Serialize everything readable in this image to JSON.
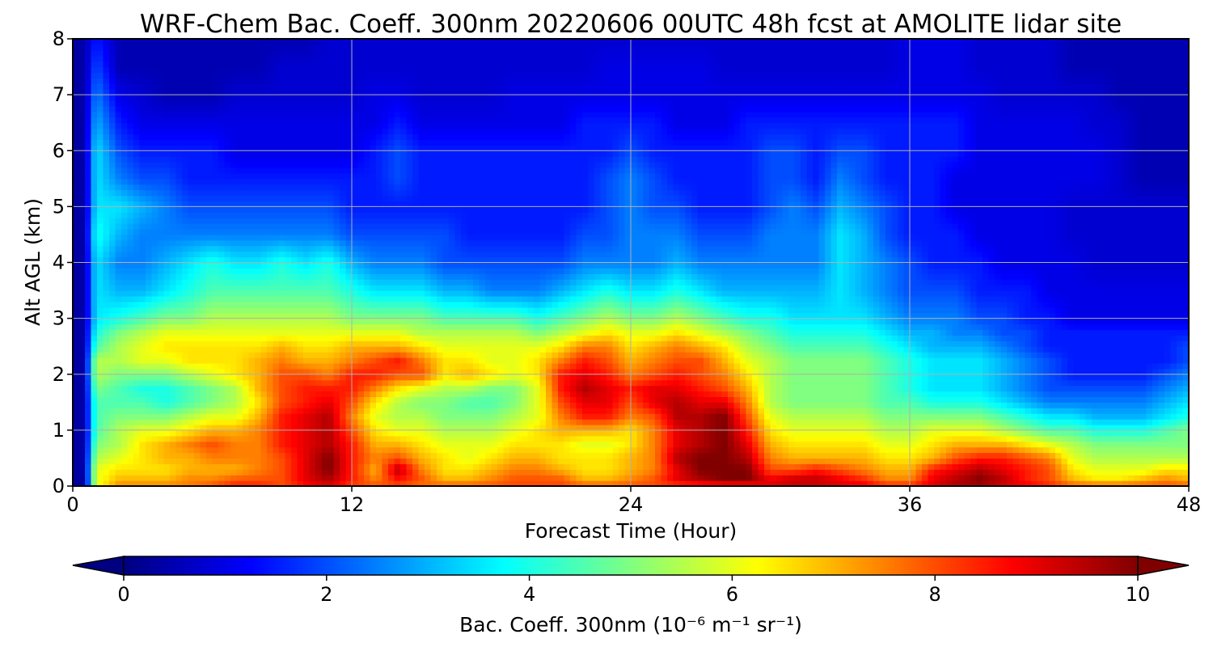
{
  "chart_data": {
    "type": "heatmap",
    "title": "WRF-Chem Bac. Coeff. 300nm  20220606 00UTC 48h fcst at AMOLITE lidar site",
    "xlabel": "Forecast Time (Hour)",
    "ylabel": "Alt AGL (km)",
    "xlim": [
      0,
      48
    ],
    "ylim": [
      0,
      8
    ],
    "xticks": [
      "0",
      "12",
      "24",
      "36",
      "48"
    ],
    "yticks": [
      "0",
      "1",
      "2",
      "3",
      "4",
      "5",
      "6",
      "7",
      "8"
    ],
    "grid": true,
    "colormap": "jet",
    "colorbar": {
      "label": "Bac. Coeff. 300nm  (10⁻⁶ m⁻¹ sr⁻¹)",
      "range": [
        0,
        10
      ],
      "ticks": [
        "0",
        "2",
        "4",
        "6",
        "8",
        "10"
      ],
      "extend": "both",
      "orientation": "horizontal"
    },
    "x": [
      0,
      0.5,
      1,
      2,
      3,
      4,
      5,
      6,
      7,
      8,
      9,
      10,
      11,
      12,
      13,
      14,
      15,
      16,
      17,
      18,
      19,
      20,
      21,
      22,
      23,
      24,
      25,
      26,
      27,
      28,
      29,
      30,
      31,
      32,
      33,
      34,
      35,
      36,
      37,
      38,
      39,
      40,
      41,
      42,
      43,
      44,
      45,
      46,
      47,
      48
    ],
    "y": [
      0,
      0.1,
      0.3,
      0.5,
      0.75,
      1.0,
      1.25,
      1.5,
      1.75,
      2.0,
      2.25,
      2.5,
      2.75,
      3.0,
      3.5,
      4.0,
      4.5,
      5.0,
      5.5,
      6.0,
      6.5,
      7.0,
      7.5,
      8.0
    ],
    "values": [
      [
        0.3,
        0.3,
        6.0,
        7.5,
        7.5,
        7.5,
        7.5,
        8.0,
        8.5,
        8.5,
        8.0,
        8.5,
        9.0,
        8.0,
        8.0,
        8.0,
        7.5,
        8.0,
        8.0,
        8.0,
        8.0,
        8.0,
        8.0,
        8.0,
        8.0,
        8.0,
        8.0,
        8.0,
        8.0,
        8.0,
        8.0,
        9.0,
        9.0,
        9.0,
        9.0,
        9.0,
        8.5,
        8.5,
        9.0,
        9.5,
        9.5,
        9.0,
        9.0,
        8.5,
        8.0,
        8.0,
        8.0,
        8.0,
        8.0,
        8.0
      ],
      [
        0.3,
        0.3,
        6.0,
        7.0,
        7.0,
        7.0,
        7.5,
        7.5,
        8.0,
        8.0,
        8.0,
        9.0,
        9.5,
        8.5,
        7.5,
        8.5,
        8.0,
        7.0,
        7.0,
        7.5,
        8.0,
        8.0,
        8.0,
        7.0,
        7.0,
        7.5,
        8.0,
        9.0,
        9.5,
        10.0,
        10.0,
        9.0,
        9.5,
        9.5,
        9.0,
        8.5,
        7.5,
        7.5,
        9.0,
        9.5,
        10.0,
        9.5,
        8.5,
        8.0,
        7.0,
        6.5,
        6.5,
        7.0,
        7.5,
        7.0
      ],
      [
        0.3,
        0.4,
        6.0,
        6.5,
        6.5,
        6.5,
        7.0,
        7.0,
        7.0,
        7.5,
        8.0,
        9.0,
        10.0,
        8.5,
        7.0,
        9.5,
        7.5,
        6.5,
        6.5,
        7.0,
        7.5,
        7.5,
        7.0,
        6.5,
        6.5,
        7.0,
        7.5,
        9.0,
        10.0,
        10.0,
        10.0,
        8.0,
        8.0,
        8.5,
        8.0,
        7.5,
        7.0,
        7.0,
        8.5,
        9.0,
        9.5,
        9.0,
        8.5,
        8.0,
        6.5,
        6.0,
        6.0,
        6.0,
        6.5,
        6.5
      ],
      [
        0.3,
        0.4,
        5.5,
        6.0,
        6.5,
        7.0,
        7.0,
        7.5,
        7.5,
        7.5,
        8.0,
        9.0,
        10.0,
        8.5,
        7.5,
        8.0,
        7.0,
        6.5,
        6.0,
        6.5,
        7.0,
        7.0,
        6.5,
        6.5,
        6.5,
        7.0,
        7.5,
        9.5,
        10.0,
        10.0,
        9.5,
        7.5,
        7.0,
        7.0,
        7.0,
        7.0,
        6.5,
        6.5,
        7.0,
        8.0,
        8.5,
        8.5,
        8.0,
        7.5,
        6.0,
        5.5,
        5.5,
        5.5,
        5.5,
        5.5
      ],
      [
        0.3,
        0.4,
        5.0,
        5.5,
        6.5,
        7.0,
        7.5,
        8.0,
        7.5,
        7.5,
        8.5,
        9.0,
        9.5,
        8.5,
        7.0,
        7.0,
        6.5,
        6.0,
        6.0,
        6.0,
        6.5,
        6.5,
        6.5,
        6.0,
        6.0,
        6.5,
        7.5,
        9.0,
        9.5,
        10.0,
        9.0,
        7.0,
        6.5,
        6.5,
        6.5,
        6.5,
        6.0,
        6.0,
        6.5,
        7.0,
        7.0,
        7.0,
        6.5,
        6.0,
        5.5,
        5.0,
        5.0,
        5.0,
        5.0,
        5.0
      ],
      [
        0.3,
        0.4,
        4.5,
        5.5,
        6.0,
        6.0,
        6.5,
        7.0,
        7.0,
        7.5,
        8.5,
        9.0,
        9.5,
        8.0,
        6.5,
        6.0,
        6.0,
        5.5,
        5.5,
        5.5,
        6.0,
        6.5,
        7.0,
        7.0,
        7.0,
        6.5,
        7.5,
        9.0,
        9.5,
        10.0,
        8.5,
        6.5,
        6.0,
        6.0,
        6.0,
        6.0,
        5.5,
        5.5,
        6.0,
        6.0,
        6.0,
        5.5,
        5.0,
        4.5,
        4.5,
        4.0,
        4.0,
        4.0,
        4.5,
        5.0
      ],
      [
        0.3,
        0.4,
        4.5,
        5.0,
        5.0,
        5.0,
        5.5,
        6.0,
        6.0,
        7.0,
        8.5,
        9.0,
        9.5,
        7.5,
        6.0,
        5.5,
        5.5,
        5.0,
        5.0,
        5.0,
        5.5,
        6.0,
        7.5,
        8.5,
        8.5,
        7.5,
        8.0,
        9.5,
        9.5,
        10.0,
        8.0,
        6.0,
        5.5,
        5.5,
        5.5,
        5.5,
        5.0,
        5.0,
        5.0,
        5.0,
        5.0,
        4.5,
        4.0,
        3.5,
        3.5,
        3.0,
        3.0,
        3.0,
        3.5,
        4.0
      ],
      [
        0.3,
        0.4,
        4.5,
        4.5,
        4.5,
        4.0,
        4.5,
        5.0,
        5.5,
        6.5,
        8.0,
        8.5,
        9.0,
        8.0,
        6.5,
        5.5,
        5.0,
        5.0,
        4.5,
        4.5,
        5.0,
        6.0,
        8.0,
        9.0,
        9.0,
        8.0,
        9.0,
        9.5,
        9.0,
        9.0,
        7.5,
        5.5,
        5.0,
        5.0,
        5.0,
        5.0,
        4.5,
        4.5,
        4.0,
        4.0,
        4.0,
        3.5,
        3.0,
        2.5,
        2.5,
        2.5,
        2.5,
        2.5,
        3.0,
        3.5
      ],
      [
        0.3,
        0.4,
        5.0,
        4.5,
        4.0,
        4.0,
        4.5,
        5.0,
        5.5,
        7.0,
        8.0,
        8.5,
        8.5,
        8.5,
        7.5,
        6.5,
        6.0,
        5.5,
        5.5,
        5.0,
        5.0,
        6.0,
        8.5,
        9.5,
        9.0,
        8.5,
        9.0,
        9.0,
        8.5,
        8.0,
        7.0,
        5.5,
        5.0,
        5.0,
        5.0,
        5.0,
        4.5,
        4.0,
        3.5,
        3.5,
        3.5,
        3.0,
        2.5,
        2.0,
        2.0,
        2.0,
        2.0,
        2.0,
        2.5,
        3.0
      ],
      [
        0.3,
        0.4,
        5.5,
        5.0,
        5.0,
        5.0,
        5.5,
        6.0,
        6.5,
        7.0,
        8.0,
        8.0,
        7.5,
        8.5,
        8.5,
        8.0,
        8.0,
        6.5,
        7.0,
        6.5,
        6.0,
        6.5,
        8.5,
        9.0,
        8.5,
        7.5,
        8.0,
        8.5,
        8.0,
        7.5,
        6.5,
        5.5,
        5.0,
        5.0,
        5.0,
        5.0,
        4.5,
        4.0,
        3.5,
        3.5,
        3.5,
        3.0,
        2.5,
        2.0,
        1.5,
        1.5,
        1.5,
        1.5,
        2.0,
        2.5
      ],
      [
        0.3,
        0.4,
        5.5,
        5.5,
        6.0,
        6.0,
        6.5,
        6.5,
        6.5,
        7.0,
        7.5,
        7.0,
        7.0,
        7.5,
        8.0,
        8.5,
        7.5,
        6.5,
        6.5,
        6.0,
        6.0,
        6.5,
        7.5,
        8.5,
        8.0,
        7.0,
        7.5,
        8.0,
        8.0,
        7.0,
        6.0,
        5.5,
        5.0,
        5.0,
        5.0,
        5.0,
        4.5,
        4.0,
        3.5,
        3.5,
        3.5,
        3.0,
        2.5,
        2.0,
        1.5,
        1.5,
        1.5,
        1.5,
        1.5,
        2.0
      ],
      [
        0.3,
        0.4,
        4.5,
        5.5,
        6.0,
        6.5,
        6.5,
        6.5,
        6.5,
        6.5,
        7.0,
        6.5,
        6.5,
        7.0,
        7.0,
        7.0,
        6.5,
        6.0,
        6.0,
        6.0,
        6.0,
        6.0,
        6.5,
        7.5,
        7.5,
        6.5,
        7.0,
        7.5,
        7.0,
        6.5,
        5.5,
        5.0,
        4.5,
        4.5,
        4.5,
        4.5,
        4.0,
        3.5,
        3.0,
        3.0,
        3.0,
        2.5,
        2.0,
        1.5,
        1.5,
        1.5,
        1.5,
        1.5,
        1.5,
        2.0
      ],
      [
        0.3,
        0.4,
        4.0,
        5.0,
        5.5,
        6.0,
        6.0,
        6.0,
        6.0,
        6.0,
        6.0,
        6.0,
        6.0,
        6.0,
        6.0,
        6.0,
        5.5,
        5.5,
        5.5,
        5.5,
        5.5,
        5.0,
        5.5,
        6.0,
        6.5,
        6.0,
        6.0,
        6.5,
        6.0,
        5.5,
        5.0,
        4.5,
        4.0,
        4.0,
        4.0,
        4.0,
        3.5,
        3.0,
        3.0,
        2.5,
        2.5,
        2.0,
        2.0,
        1.5,
        1.5,
        1.5,
        1.5,
        1.5,
        1.5,
        1.5
      ],
      [
        0.3,
        0.4,
        3.5,
        4.0,
        4.5,
        5.0,
        5.0,
        5.5,
        5.5,
        5.5,
        5.5,
        5.5,
        5.5,
        5.0,
        5.0,
        5.0,
        5.0,
        4.5,
        4.5,
        4.5,
        4.5,
        4.0,
        4.5,
        5.0,
        5.5,
        5.0,
        5.0,
        5.5,
        5.0,
        4.5,
        4.0,
        4.0,
        3.5,
        3.5,
        3.5,
        3.5,
        3.0,
        2.5,
        2.5,
        2.5,
        2.0,
        2.0,
        1.5,
        1.5,
        1.0,
        1.0,
        1.0,
        1.0,
        1.0,
        1.0
      ],
      [
        0.3,
        0.4,
        3.5,
        3.0,
        3.0,
        3.5,
        4.0,
        4.5,
        4.5,
        4.5,
        4.5,
        4.5,
        4.5,
        4.0,
        3.5,
        3.5,
        3.5,
        3.0,
        3.0,
        2.5,
        2.5,
        2.5,
        3.0,
        3.5,
        4.0,
        3.5,
        3.5,
        4.0,
        3.5,
        3.0,
        3.0,
        3.0,
        3.0,
        3.0,
        3.5,
        3.0,
        2.5,
        2.0,
        2.0,
        2.0,
        1.5,
        1.5,
        1.5,
        1.0,
        1.0,
        1.0,
        1.0,
        1.0,
        1.0,
        1.0
      ],
      [
        0.3,
        0.4,
        3.5,
        2.5,
        2.5,
        3.0,
        3.5,
        4.0,
        3.5,
        3.5,
        4.0,
        3.5,
        4.0,
        3.0,
        2.5,
        2.5,
        2.5,
        2.0,
        2.0,
        2.0,
        2.0,
        2.0,
        2.0,
        2.5,
        2.5,
        2.5,
        2.5,
        3.0,
        2.5,
        2.5,
        2.5,
        2.5,
        2.5,
        2.5,
        3.5,
        3.0,
        2.5,
        2.0,
        1.5,
        1.5,
        1.5,
        1.0,
        1.0,
        1.0,
        1.0,
        0.8,
        0.8,
        0.8,
        0.8,
        0.8
      ],
      [
        0.3,
        0.4,
        4.0,
        3.0,
        2.5,
        2.5,
        2.5,
        2.5,
        2.5,
        2.5,
        2.5,
        2.5,
        2.5,
        2.0,
        2.0,
        2.0,
        2.0,
        2.0,
        1.5,
        1.5,
        1.5,
        1.5,
        1.5,
        2.0,
        2.0,
        2.5,
        2.5,
        2.5,
        2.0,
        2.0,
        2.0,
        2.5,
        2.5,
        2.5,
        3.5,
        3.0,
        2.0,
        1.5,
        1.5,
        1.5,
        1.0,
        1.0,
        1.0,
        1.0,
        0.8,
        0.8,
        0.8,
        0.8,
        0.8,
        0.8
      ],
      [
        0.3,
        0.4,
        3.5,
        3.5,
        3.0,
        2.5,
        2.0,
        2.0,
        2.0,
        2.0,
        2.0,
        2.0,
        2.0,
        1.5,
        1.5,
        1.5,
        1.5,
        1.5,
        1.5,
        1.5,
        1.5,
        1.5,
        1.5,
        1.5,
        2.0,
        2.5,
        2.0,
        2.0,
        1.5,
        1.5,
        1.5,
        2.0,
        2.5,
        2.0,
        3.0,
        2.5,
        2.0,
        1.5,
        1.5,
        1.0,
        1.0,
        1.0,
        1.0,
        1.0,
        0.8,
        0.8,
        0.8,
        0.8,
        0.8,
        0.8
      ],
      [
        0.3,
        0.4,
        3.5,
        2.5,
        2.0,
        2.0,
        1.5,
        1.5,
        1.5,
        1.5,
        1.5,
        1.5,
        1.5,
        1.5,
        1.5,
        2.0,
        1.5,
        1.5,
        1.5,
        1.5,
        1.5,
        1.5,
        1.5,
        1.5,
        2.0,
        2.5,
        2.0,
        1.5,
        1.5,
        1.5,
        1.5,
        2.0,
        2.0,
        1.5,
        2.5,
        2.0,
        1.5,
        1.5,
        1.5,
        1.0,
        1.0,
        1.0,
        1.0,
        1.0,
        1.0,
        1.0,
        0.8,
        0.5,
        0.5,
        0.5
      ],
      [
        0.3,
        0.4,
        3.5,
        2.0,
        1.5,
        1.5,
        1.5,
        1.5,
        1.0,
        1.0,
        1.0,
        1.0,
        1.0,
        1.0,
        1.5,
        2.0,
        1.5,
        1.5,
        1.5,
        1.5,
        1.5,
        1.5,
        1.5,
        1.5,
        1.5,
        2.0,
        1.5,
        1.5,
        1.5,
        1.5,
        1.5,
        2.0,
        2.0,
        1.5,
        2.0,
        2.0,
        1.5,
        1.5,
        1.5,
        1.5,
        1.0,
        1.0,
        1.0,
        1.0,
        1.0,
        1.0,
        0.8,
        0.5,
        0.5,
        0.5
      ],
      [
        0.3,
        0.4,
        3.0,
        1.5,
        1.0,
        1.0,
        1.0,
        1.0,
        1.0,
        1.0,
        1.0,
        1.0,
        1.0,
        1.0,
        1.0,
        1.5,
        1.0,
        1.0,
        1.0,
        1.0,
        1.0,
        1.0,
        1.0,
        1.5,
        1.5,
        1.5,
        1.5,
        1.0,
        1.0,
        1.0,
        1.5,
        1.5,
        1.5,
        1.5,
        1.5,
        1.5,
        1.5,
        1.5,
        1.5,
        1.5,
        1.0,
        1.0,
        1.0,
        1.0,
        1.0,
        0.8,
        0.8,
        0.5,
        0.5,
        0.5
      ],
      [
        0.3,
        0.4,
        2.5,
        1.0,
        0.8,
        0.5,
        0.5,
        0.5,
        0.8,
        0.8,
        0.8,
        0.8,
        0.8,
        0.8,
        1.0,
        1.0,
        0.8,
        0.8,
        0.8,
        0.8,
        1.0,
        1.0,
        1.0,
        1.0,
        1.0,
        1.0,
        1.0,
        1.0,
        1.0,
        1.0,
        1.0,
        1.0,
        1.0,
        1.0,
        1.0,
        1.0,
        1.0,
        1.0,
        1.0,
        1.0,
        1.0,
        0.8,
        0.8,
        0.8,
        0.8,
        0.8,
        0.5,
        0.5,
        0.5,
        0.5
      ],
      [
        0.3,
        0.4,
        2.0,
        0.5,
        0.5,
        0.5,
        0.5,
        0.5,
        0.5,
        0.5,
        0.8,
        0.8,
        0.8,
        0.8,
        0.8,
        0.8,
        0.8,
        0.8,
        0.8,
        0.8,
        0.8,
        0.8,
        0.8,
        0.8,
        1.0,
        1.0,
        1.0,
        1.0,
        1.0,
        0.8,
        0.8,
        0.8,
        0.8,
        0.8,
        0.8,
        0.8,
        0.8,
        1.0,
        1.0,
        1.0,
        0.8,
        0.8,
        0.8,
        0.8,
        0.5,
        0.5,
        0.5,
        0.5,
        0.5,
        0.5
      ],
      [
        0.3,
        0.4,
        1.5,
        0.5,
        0.5,
        0.5,
        0.5,
        0.5,
        0.5,
        0.5,
        0.5,
        0.5,
        0.8,
        0.8,
        0.8,
        0.8,
        0.8,
        0.8,
        0.8,
        0.8,
        0.8,
        0.8,
        0.8,
        0.8,
        0.8,
        0.8,
        0.8,
        0.8,
        0.8,
        0.8,
        0.8,
        0.8,
        0.8,
        0.8,
        0.8,
        0.8,
        0.8,
        1.0,
        1.0,
        1.0,
        0.8,
        0.8,
        0.8,
        0.8,
        0.5,
        0.5,
        0.5,
        0.5,
        0.5,
        0.5
      ]
    ]
  }
}
